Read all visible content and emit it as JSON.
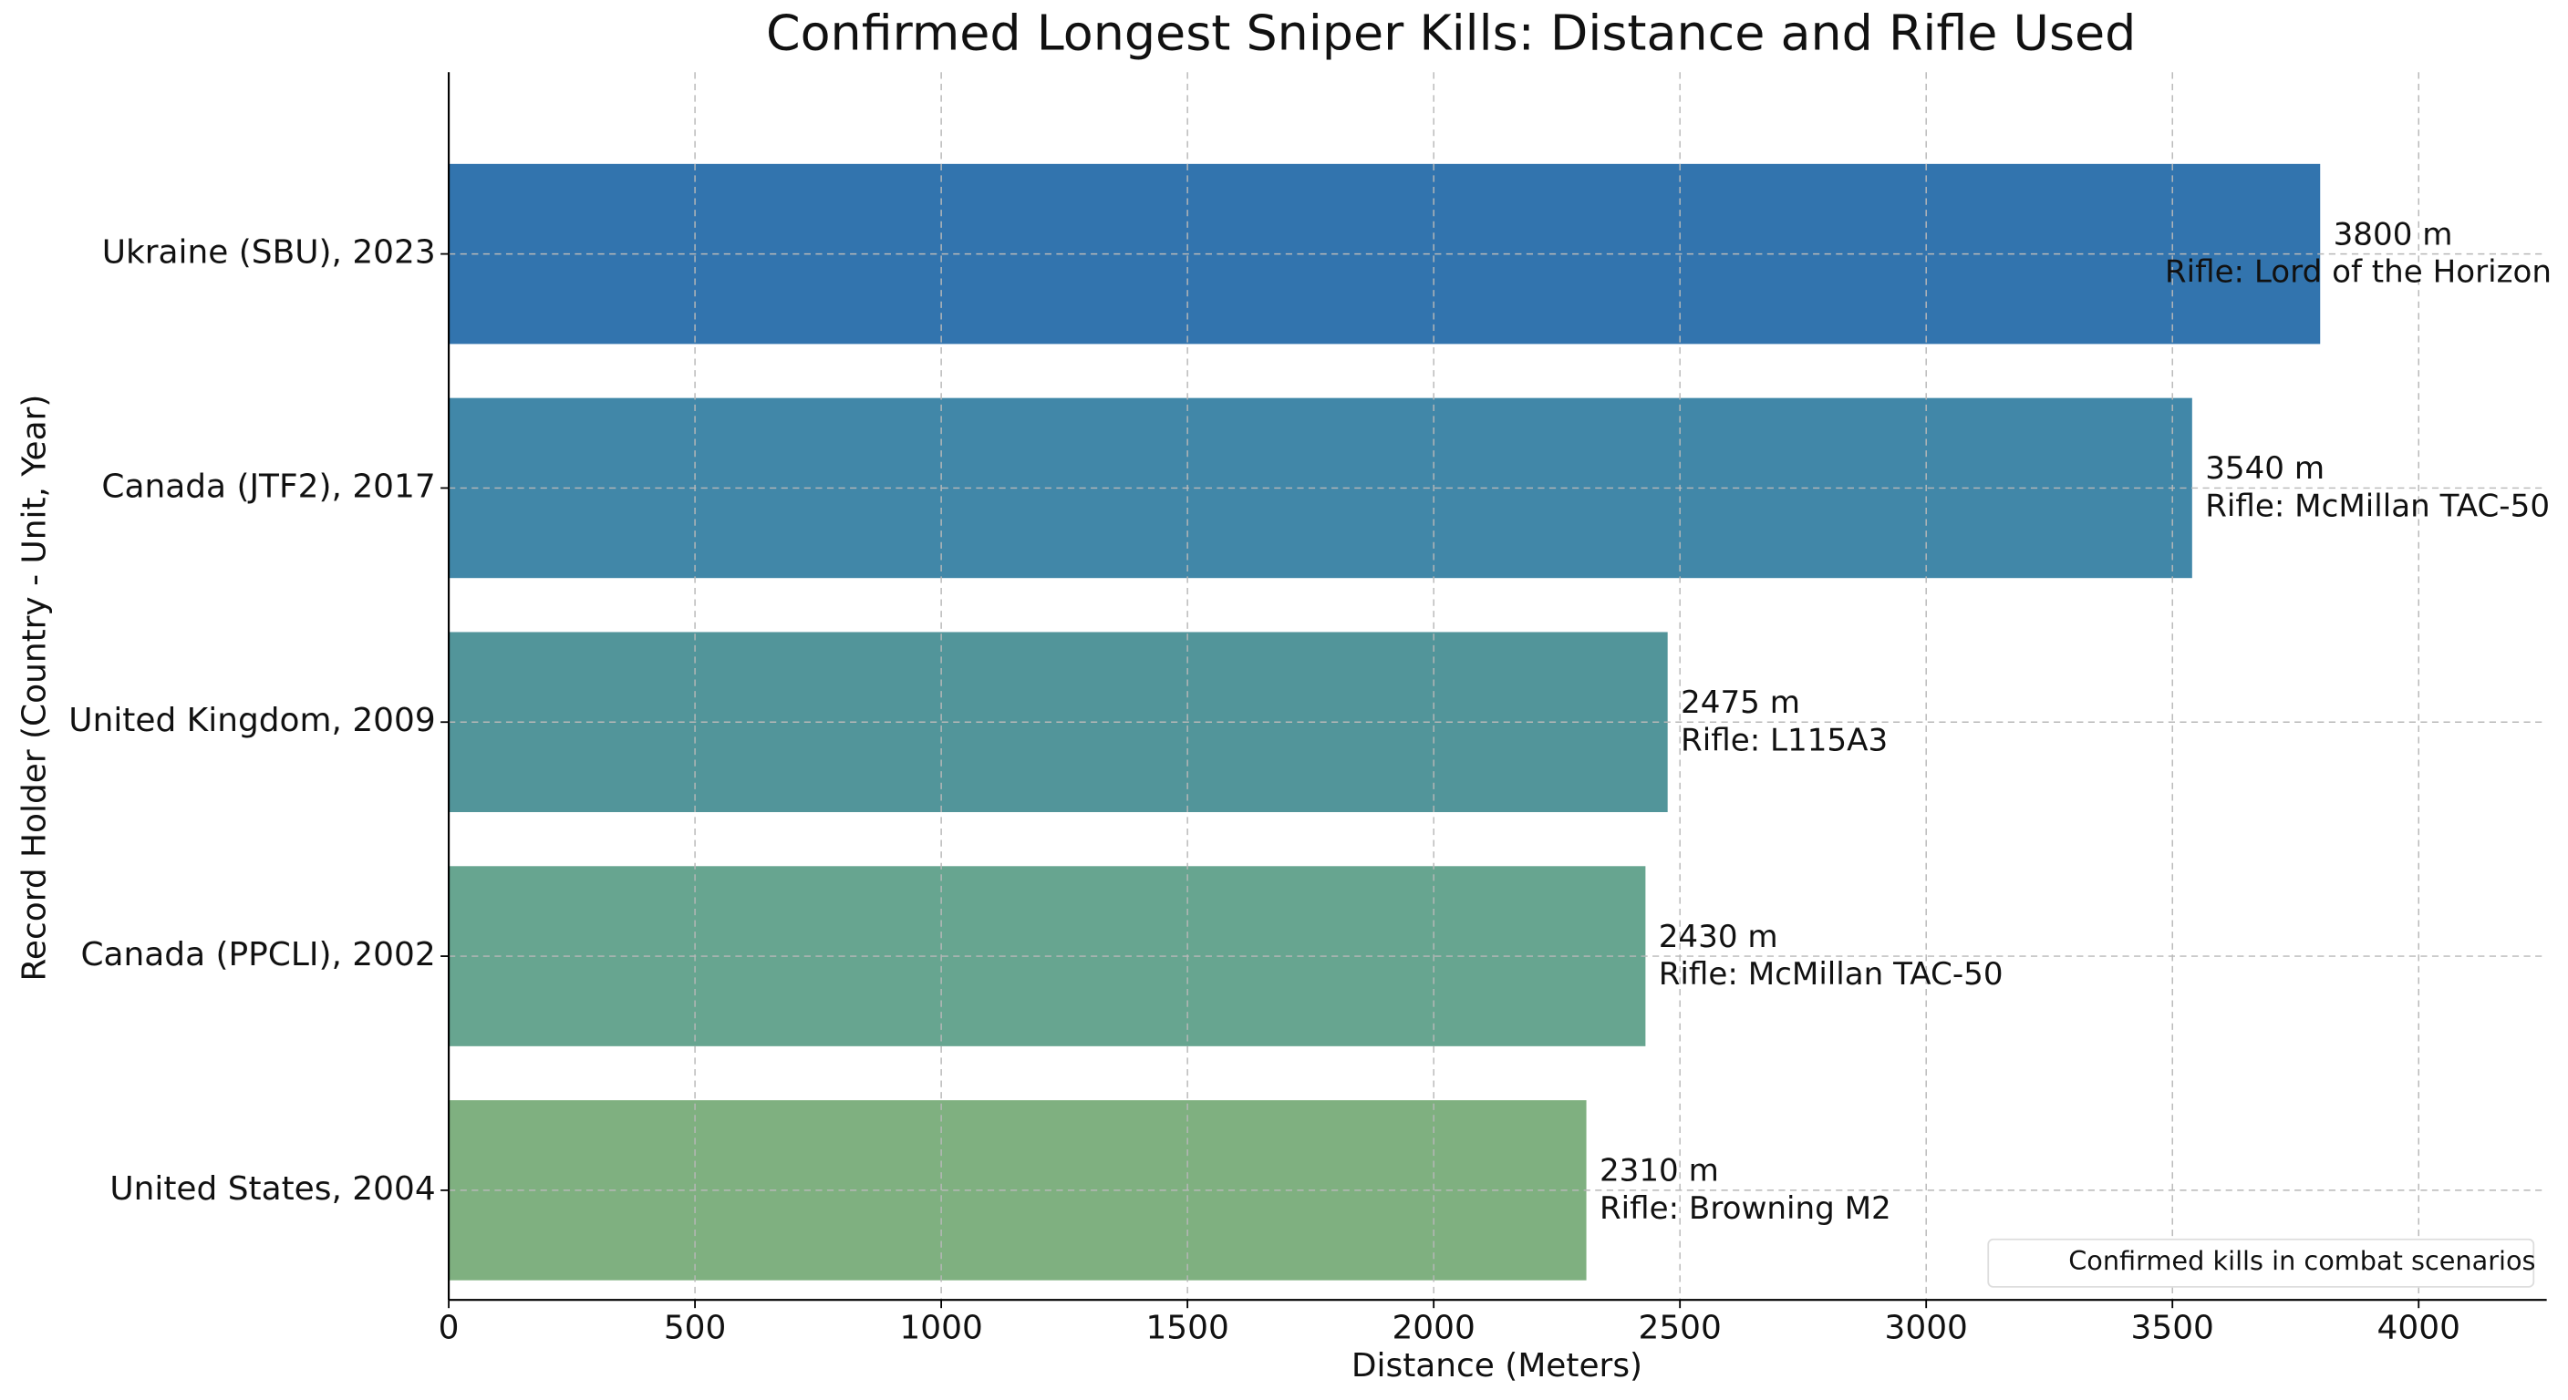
{
  "chart_data": {
    "type": "barh",
    "title": "Confirmed Longest Sniper Kills: Distance and Rifle Used",
    "x_label": "Distance (Meters)",
    "y_label": "Record Holder (Country - Unit, Year)",
    "categories": [
      "Ukraine (SBU), 2023",
      "Canada (JTF2), 2017",
      "United Kingdom, 2009",
      "Canada (PPCLI), 2002",
      "United States, 2004"
    ],
    "values": [
      3800,
      3540,
      2475,
      2430,
      2310
    ],
    "value_labels": [
      "3800 m",
      "3540 m",
      "2475 m",
      "2430 m",
      "2310 m"
    ],
    "annotations": [
      "Rifle: Lord of the Horizon",
      "Rifle: McMillan TAC-50",
      "Rifle: L115A3",
      "Rifle: McMillan TAC-50",
      "Rifle: Browning M2"
    ],
    "colors": [
      "#3274ae",
      "#4187a8",
      "#52959a",
      "#67a590",
      "#7fb080"
    ],
    "legend_label": "Confirmed kills in combat scenarios",
    "legend_position": "lower right",
    "xlim": [
      0,
      4260
    ],
    "xticks": [
      0,
      500,
      1000,
      1500,
      2000,
      2500,
      3000,
      3500,
      4000
    ],
    "grid": true
  }
}
